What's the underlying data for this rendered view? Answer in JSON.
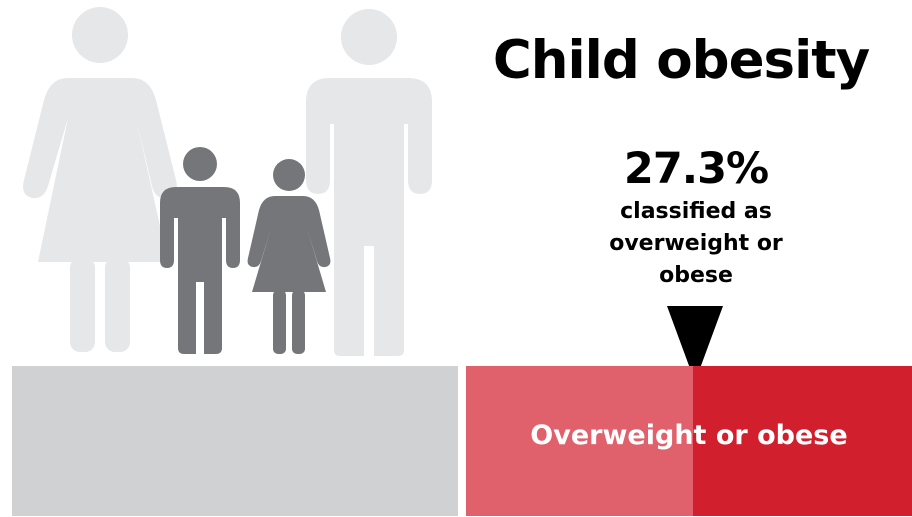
{
  "title": "Child obesity",
  "stat": {
    "value": "27.3%",
    "description_lines": [
      "classified as",
      "overweight or",
      "obese"
    ]
  },
  "bar": {
    "label": "Overweight or obese",
    "overweight_or_obese_percent": 27.3
  },
  "colors": {
    "adult_figure": "#e6e7e8",
    "child_figure": "#757679",
    "grey_bar": "#d0d1d3",
    "light_red": "#e0616b",
    "dark_red": "#d11f2e",
    "text": "#000000",
    "bar_text": "#ffffff"
  },
  "icons": {
    "figures": [
      "adult-woman-icon",
      "boy-icon",
      "girl-icon",
      "adult-man-icon"
    ],
    "pointer": "triangle-down-icon"
  }
}
